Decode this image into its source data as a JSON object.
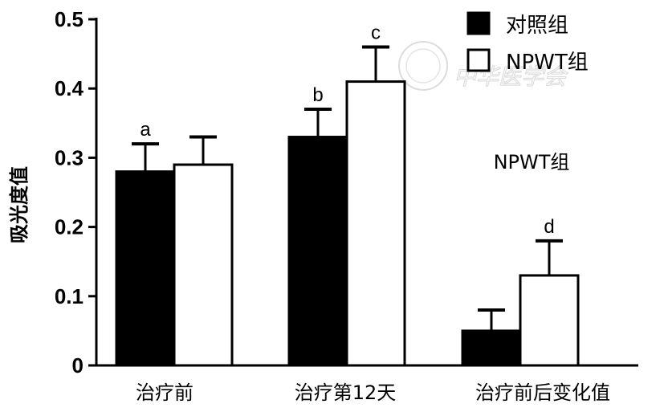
{
  "chart_data": {
    "type": "bar",
    "categories": [
      "治疗前",
      "治疗第12天",
      "治疗前后变化值"
    ],
    "series": [
      {
        "name": "对照组",
        "color": "#000000",
        "values": [
          0.28,
          0.33,
          0.05
        ],
        "error": [
          0.04,
          0.04,
          0.03
        ],
        "sig": [
          "a",
          "b",
          ""
        ]
      },
      {
        "name": "NPWT组",
        "color": "#ffffff",
        "values": [
          0.29,
          0.41,
          0.13
        ],
        "error": [
          0.04,
          0.05,
          0.05
        ],
        "sig": [
          "",
          "c",
          "d"
        ]
      }
    ],
    "ylabel": "吸光度值",
    "xlabel": "",
    "ylim": [
      0,
      0.5
    ],
    "yticks": [
      "0",
      "0.1",
      "0.2",
      "0.3",
      "0.4",
      "0.5"
    ],
    "legend_position": "top-right",
    "annotation": "NPWT组",
    "grid": false
  },
  "watermark": {
    "text": "中华医学会"
  }
}
